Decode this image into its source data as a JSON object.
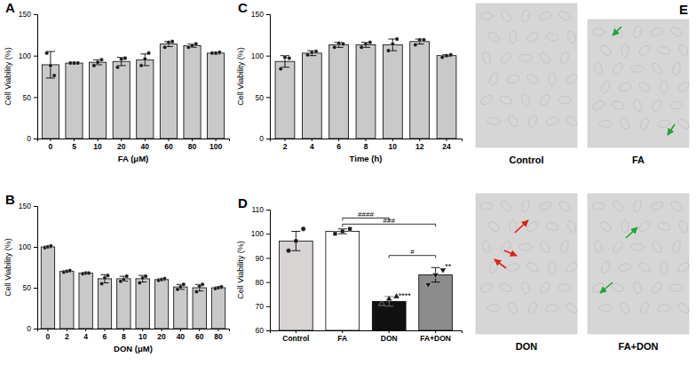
{
  "chart_data": [
    {
      "type": "bar",
      "title": "A",
      "x_label": "FA (μM)",
      "y_label": "Cell Viability (%)",
      "categories": [
        "0",
        "5",
        "10",
        "20",
        "40",
        "60",
        "80",
        "100"
      ],
      "values": [
        89,
        91,
        92,
        93,
        95,
        114,
        112,
        103
      ],
      "errors": [
        16,
        1,
        3,
        5,
        7,
        3,
        2,
        1
      ],
      "points": [
        [
          103,
          88,
          76
        ],
        [
          91,
          91,
          91
        ],
        [
          88,
          92,
          95
        ],
        [
          86,
          96,
          97
        ],
        [
          88,
          96,
          103
        ],
        [
          110,
          116,
          117
        ],
        [
          110,
          112,
          114
        ],
        [
          103,
          103,
          104
        ]
      ],
      "color": "#c9c9c9",
      "ylim": [
        0,
        150
      ],
      "yticks": [
        0,
        50,
        100,
        150
      ]
    },
    {
      "type": "bar",
      "title": "B",
      "x_label": "DON (μM)",
      "y_label": "Cell Viability (%)",
      "categories": [
        "0",
        "2",
        "4",
        "6",
        "8",
        "10",
        "20",
        "40",
        "60",
        "80"
      ],
      "values": [
        100,
        70,
        68,
        61,
        61,
        61,
        60,
        51,
        50,
        50
      ],
      "errors": [
        1,
        1,
        1,
        5,
        3,
        4,
        1,
        3,
        4,
        1
      ],
      "points": [
        [
          99,
          100,
          101
        ],
        [
          69,
          70,
          71
        ],
        [
          67,
          68,
          68
        ],
        [
          55,
          62,
          65
        ],
        [
          58,
          60,
          64
        ],
        [
          56,
          62,
          64
        ],
        [
          59,
          60,
          61
        ],
        [
          48,
          51,
          54
        ],
        [
          45,
          52,
          54
        ],
        [
          49,
          50,
          51
        ]
      ],
      "color": "#c9c9c9",
      "ylim": [
        0,
        150
      ],
      "yticks": [
        0,
        50,
        100,
        150
      ]
    },
    {
      "type": "bar",
      "title": "C",
      "x_label": "Time (h)",
      "y_label": "Cell Viability (%)",
      "categories": [
        "2",
        "4",
        "6",
        "8",
        "10",
        "12",
        "24"
      ],
      "values": [
        93,
        103,
        113,
        113,
        113,
        117,
        100
      ],
      "errors": [
        7,
        3,
        3,
        3,
        7,
        3,
        1
      ],
      "points": [
        [
          84,
          98,
          97
        ],
        [
          101,
          104,
          105
        ],
        [
          110,
          115,
          114
        ],
        [
          110,
          114,
          116
        ],
        [
          106,
          114,
          120
        ],
        [
          113,
          119,
          119
        ],
        [
          98,
          100,
          101
        ]
      ],
      "color": "#c9c9c9",
      "ylim": [
        0,
        150
      ],
      "yticks": [
        0,
        50,
        100,
        150
      ]
    },
    {
      "type": "bar",
      "title": "D",
      "y_label": "Cell Viability (%)",
      "categories": [
        "Control",
        "FA",
        "DON",
        "FA+DON"
      ],
      "values": [
        97,
        101,
        72,
        83
      ],
      "errors": [
        4,
        1,
        2,
        3
      ],
      "points": [
        [
          93,
          97,
          102
        ],
        [
          100,
          101,
          102
        ],
        [
          71,
          73,
          74
        ],
        [
          79,
          83,
          85
        ]
      ],
      "colors": [
        "#d9d4d4",
        "#ffffff",
        "#111111",
        "#8c8c8c"
      ],
      "significance": [
        null,
        null,
        "****",
        "**"
      ],
      "brackets": [
        {
          "from": 1,
          "to": 2,
          "y": 106.5,
          "label": "####"
        },
        {
          "from": 1,
          "to": 3,
          "y": 104,
          "label": "###"
        },
        {
          "from": 2,
          "to": 3,
          "y": 91,
          "label": "#"
        }
      ],
      "ylim": [
        60,
        110
      ],
      "yticks": [
        60,
        70,
        80,
        90,
        100,
        110
      ]
    }
  ],
  "images": {
    "title": "E",
    "labels": [
      "Control",
      "FA",
      "DON",
      "FA+DON"
    ]
  }
}
